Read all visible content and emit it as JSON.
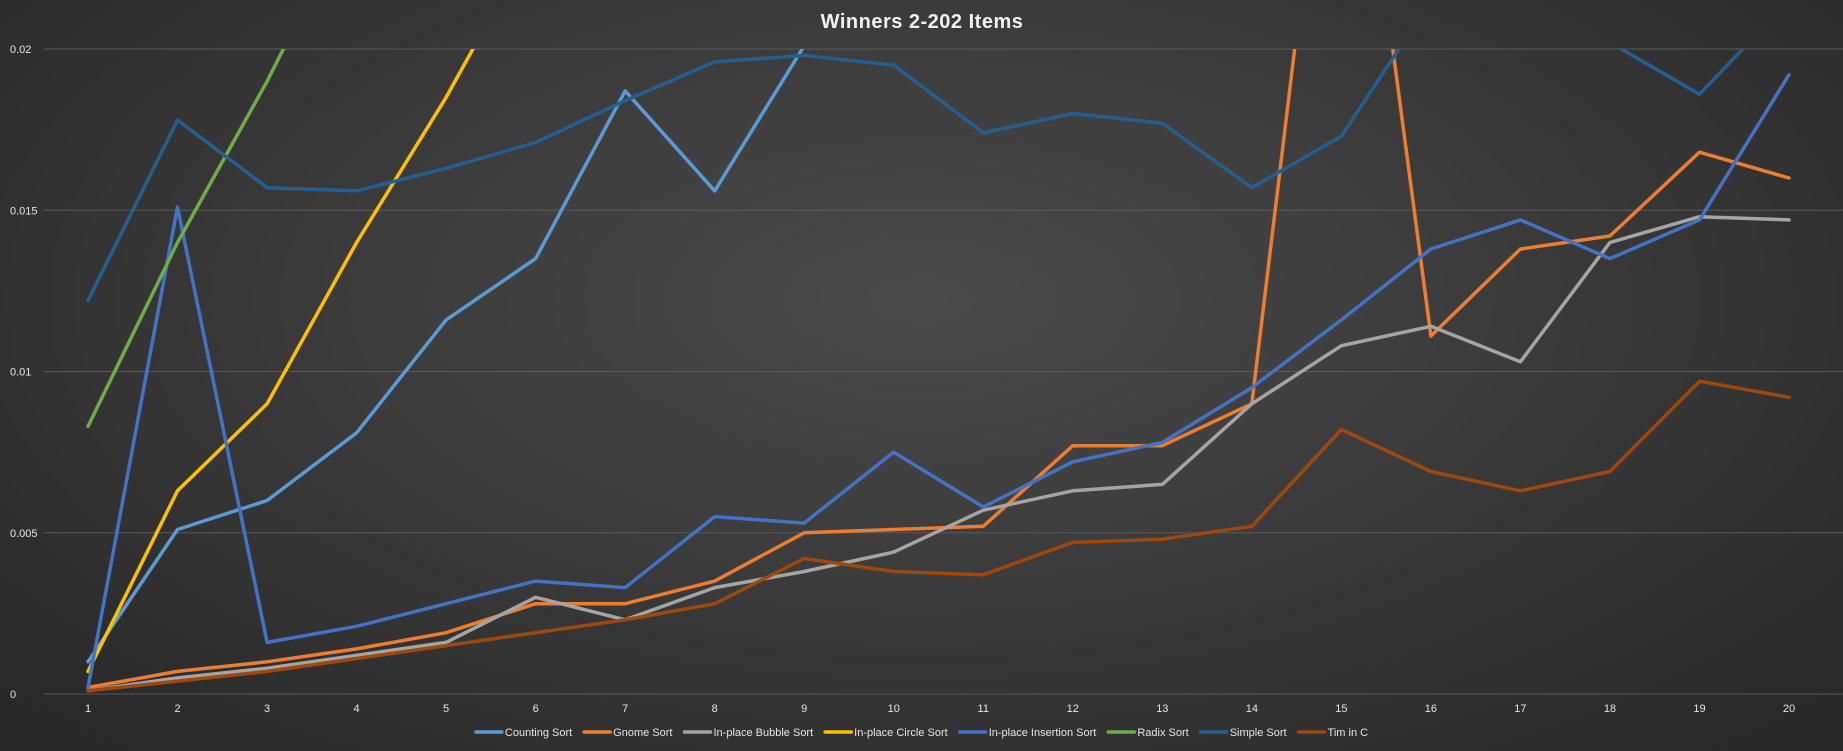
{
  "chart_data": {
    "type": "line",
    "title": "Winners 2-202 Items",
    "xlabel": "",
    "ylabel": "",
    "x": [
      1,
      2,
      3,
      4,
      5,
      6,
      7,
      8,
      9,
      10,
      11,
      12,
      13,
      14,
      15,
      16,
      17,
      18,
      19,
      20
    ],
    "ylim": [
      0,
      0.02
    ],
    "y_ticks": [
      0,
      0.005,
      0.01,
      0.015,
      0.02
    ],
    "y_tick_labels": [
      "0",
      "0.005",
      "0.01",
      "0.015",
      "0.02"
    ],
    "grid": true,
    "legend_position": "bottom",
    "series": [
      {
        "name": "Counting Sort",
        "color": "#5b9bd5",
        "values": [
          0.001,
          0.0051,
          0.006,
          0.0081,
          0.0116,
          0.0135,
          0.0187,
          0.0156,
          0.0201,
          null,
          null,
          null,
          null,
          null,
          null,
          null,
          null,
          null,
          null,
          null
        ]
      },
      {
        "name": "Gnome Sort",
        "color": "#ed7d31",
        "values": [
          0.0002,
          0.0007,
          0.001,
          0.0014,
          0.0019,
          0.0028,
          0.0028,
          0.0035,
          0.005,
          0.0051,
          0.0052,
          0.0077,
          0.0077,
          0.009,
          0.032,
          0.0111,
          0.0138,
          0.0142,
          0.0168,
          0.016
        ]
      },
      {
        "name": "In-place Bubble Sort",
        "color": "#a5a5a5",
        "values": [
          0.0001,
          0.0005,
          0.0008,
          0.0012,
          0.0016,
          0.003,
          0.0023,
          0.0033,
          0.0038,
          0.0044,
          0.0057,
          0.0063,
          0.0065,
          0.009,
          0.0108,
          0.0114,
          0.0103,
          0.014,
          0.0148,
          0.0147
        ]
      },
      {
        "name": "In-place Circle Sort",
        "color": "#ffc000",
        "values": [
          0.0007,
          0.0063,
          0.009,
          0.014,
          0.0185,
          0.0235,
          null,
          null,
          null,
          null,
          null,
          null,
          null,
          null,
          null,
          null,
          null,
          null,
          null,
          null
        ]
      },
      {
        "name": "In-place Insertion Sort",
        "color": "#4472c4",
        "values": [
          0.0002,
          0.0151,
          0.0016,
          0.0021,
          0.0028,
          0.0035,
          0.0033,
          0.0055,
          0.0053,
          0.0075,
          0.0058,
          0.0072,
          0.0078,
          0.0095,
          0.0116,
          0.0138,
          0.0147,
          0.0135,
          0.0147,
          0.0192
        ]
      },
      {
        "name": "Radix Sort",
        "color": "#70ad47",
        "values": [
          0.0083,
          0.014,
          0.019,
          0.0245,
          null,
          null,
          null,
          null,
          null,
          null,
          null,
          null,
          null,
          null,
          null,
          null,
          null,
          null,
          null,
          null
        ]
      },
      {
        "name": "Simple Sort",
        "color": "#255e91",
        "values": [
          0.0122,
          0.0178,
          0.0157,
          0.0156,
          0.0163,
          0.0171,
          0.0184,
          0.0196,
          0.0198,
          0.0195,
          0.0174,
          0.018,
          0.0177,
          0.0157,
          0.0173,
          0.0215,
          0.0235,
          0.0202,
          0.0186,
          0.0215
        ]
      },
      {
        "name": "Tim in C",
        "color": "#9e480e",
        "values": [
          0.0001,
          0.0004,
          0.0007,
          0.0011,
          0.0015,
          0.0019,
          0.0023,
          0.0028,
          0.0042,
          0.0038,
          0.0037,
          0.0047,
          0.0048,
          0.0052,
          0.0082,
          0.0069,
          0.0063,
          0.0069,
          0.0097,
          0.0092
        ]
      }
    ]
  }
}
